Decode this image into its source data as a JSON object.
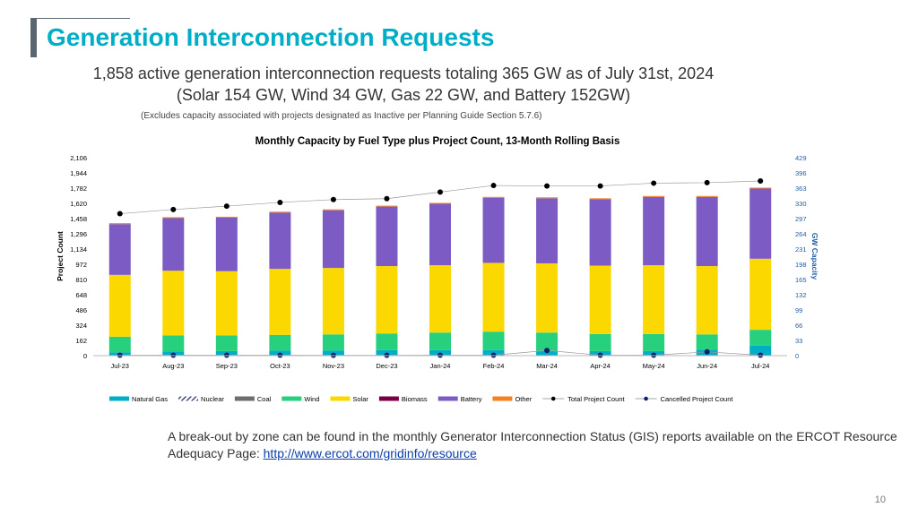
{
  "slide": {
    "title": "Generation Interconnection Requests",
    "subtitle_line1": "1,858 active generation interconnection requests totaling 365 GW as of July 31st, 2024",
    "subtitle_line2": "(Solar 154 GW, Wind 34 GW, Gas 22 GW, and Battery 152GW)",
    "note": "(Excludes capacity associated with projects designated as Inactive per Planning Guide Section 5.7.6)",
    "footnote_text": "A break-out by zone can be found in the monthly Generator Interconnection Status (GIS) reports available on the ERCOT Resource Adequacy Page: ",
    "footnote_link": "http://www.ercot.com/gridinfo/resource",
    "page_number": "10"
  },
  "chart_data": {
    "type": "bar",
    "stacked": true,
    "title": "Monthly Capacity by Fuel Type plus Project Count, 13-Month Rolling Basis",
    "ylabel_left": "Project Count",
    "ylabel_right": "GW Capacity",
    "left_ticks": [
      "0",
      "162",
      "324",
      "486",
      "648",
      "810",
      "972",
      "1,134",
      "1,296",
      "1,458",
      "1,620",
      "1,782",
      "1,944",
      "2,106"
    ],
    "right_ticks": [
      "0",
      "33",
      "66",
      "99",
      "132",
      "165",
      "198",
      "231",
      "264",
      "297",
      "330",
      "363",
      "396",
      "429"
    ],
    "ylim_left": [
      0,
      2106
    ],
    "ylim_right": [
      0,
      429
    ],
    "categories": [
      "Jul-23",
      "Aug-23",
      "Sep-23",
      "Oct-23",
      "Nov-23",
      "Dec-23",
      "Jan-24",
      "Feb-24",
      "Mar-24",
      "Apr-24",
      "May-24",
      "Jun-24",
      "Jul-24"
    ],
    "series": [
      {
        "name": "Natural Gas",
        "color": "#00aec7",
        "values": [
          7,
          9,
          10,
          11,
          11,
          12,
          12,
          12,
          11,
          10,
          10,
          13,
          22
        ]
      },
      {
        "name": "Nuclear",
        "color": "#1f2a6b",
        "values": [
          0,
          0,
          0,
          0,
          0,
          0,
          0,
          0,
          0,
          0,
          0,
          0,
          0
        ]
      },
      {
        "name": "Coal",
        "color": "#6d6e71",
        "values": [
          0,
          0,
          0,
          0,
          0,
          0,
          0,
          0,
          0,
          0,
          0,
          0,
          0
        ]
      },
      {
        "name": "Wind",
        "color": "#26d07c",
        "values": [
          34,
          35,
          34,
          34,
          35,
          36,
          38,
          40,
          39,
          37,
          37,
          33,
          34
        ]
      },
      {
        "name": "Solar",
        "color": "#fbd800",
        "values": [
          134,
          140,
          139,
          143,
          144,
          146,
          146,
          149,
          150,
          148,
          149,
          148,
          154
        ]
      },
      {
        "name": "Biomass",
        "color": "#7a0045",
        "values": [
          0,
          0,
          0,
          0,
          0,
          0,
          0,
          0,
          0,
          0,
          0,
          0,
          0
        ]
      },
      {
        "name": "Battery",
        "color": "#7c5cc4",
        "values": [
          110,
          114,
          116,
          122,
          125,
          129,
          133,
          141,
          141,
          144,
          148,
          150,
          152
        ]
      },
      {
        "name": "Other",
        "color": "#f58220",
        "values": [
          2,
          2,
          2,
          2,
          2,
          2,
          2,
          2,
          2,
          2,
          2,
          2,
          2
        ]
      }
    ],
    "lines": [
      {
        "name": "Total Project Count",
        "color": "#000000",
        "axis": "left",
        "values": [
          1510,
          1555,
          1590,
          1630,
          1660,
          1670,
          1740,
          1810,
          1805,
          1805,
          1835,
          1840,
          1858
        ]
      },
      {
        "name": "Cancelled Project Count",
        "color": "#0b1f6b",
        "axis": "left",
        "values": [
          5,
          5,
          5,
          5,
          4,
          4,
          5,
          5,
          55,
          5,
          5,
          40,
          5
        ]
      }
    ],
    "legend_position": "bottom",
    "grid": false
  }
}
